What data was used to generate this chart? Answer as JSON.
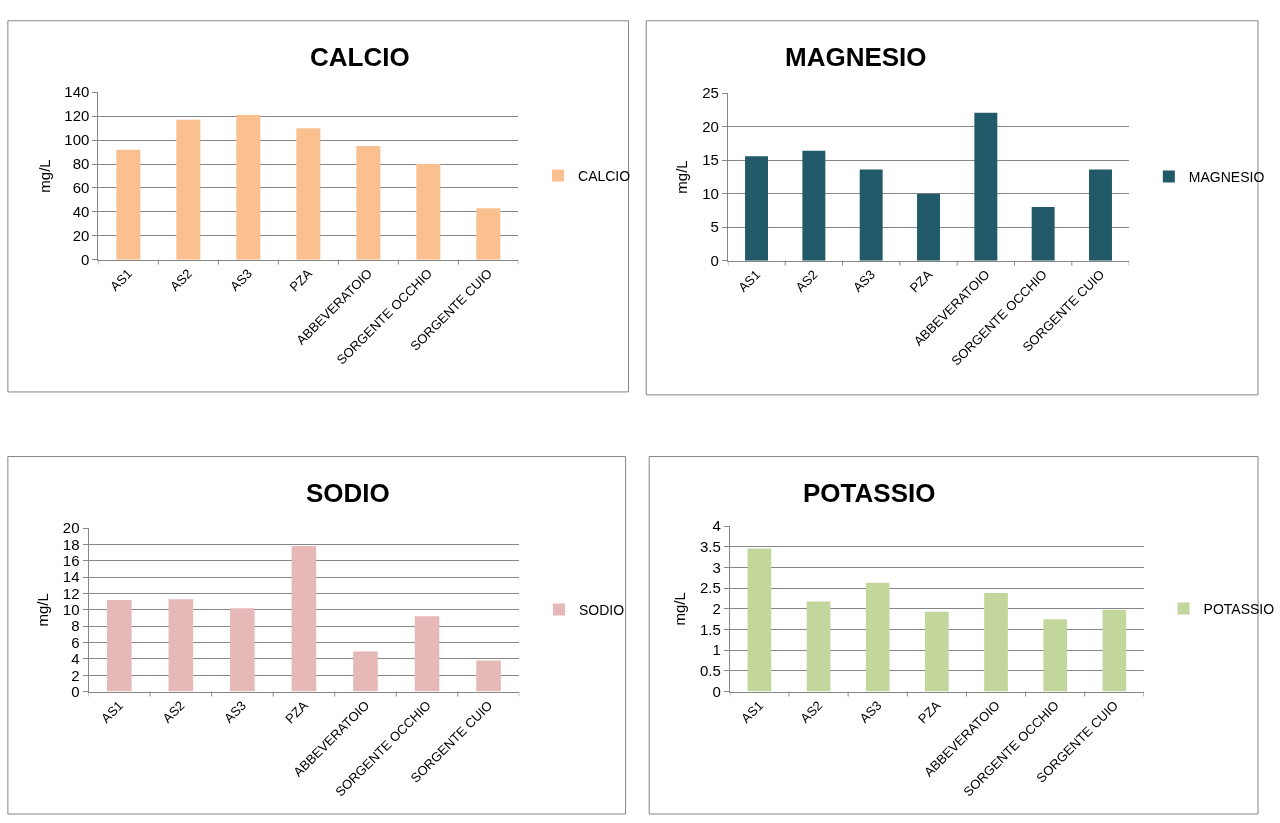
{
  "chart_data": [
    {
      "type": "bar",
      "title": "CALCIO",
      "ylabel": "mg/L",
      "categories": [
        "AS1",
        "AS2",
        "AS3",
        "PZA",
        "ABBEVERATOIO",
        "SORGENTE OCCHIO",
        "SORGENTE CUIO"
      ],
      "series": [
        {
          "name": "CALCIO",
          "color": "#fac090",
          "values": [
            92,
            117,
            121,
            110,
            95,
            80,
            43
          ]
        }
      ],
      "ylim": [
        0,
        140
      ],
      "yticks": [
        0,
        20,
        40,
        60,
        80,
        100,
        120,
        140
      ],
      "grid": "y",
      "legend": "right"
    },
    {
      "type": "bar",
      "title": "MAGNESIO",
      "ylabel": "mg/L",
      "categories": [
        "AS1",
        "AS2",
        "AS3",
        "PZA",
        "ABBEVERATOIO",
        "SORGENTE OCCHIO",
        "SORGENTE CUIO"
      ],
      "series": [
        {
          "name": "MAGNESIO",
          "color": "#215968",
          "values": [
            15.6,
            16.4,
            13.6,
            10,
            22.1,
            8,
            13.6
          ]
        }
      ],
      "ylim": [
        0,
        25
      ],
      "yticks": [
        0,
        5,
        10,
        15,
        20,
        25
      ],
      "grid": "y",
      "legend": "right"
    },
    {
      "type": "bar",
      "title": "SODIO",
      "ylabel": "mg/L",
      "categories": [
        "AS1",
        "AS2",
        "AS3",
        "PZA",
        "ABBEVERATOIO",
        "SORGENTE OCCHIO",
        "SORGENTE CUIO"
      ],
      "series": [
        {
          "name": "SODIO",
          "color": "#e6b9b8",
          "values": [
            11.2,
            11.3,
            10.2,
            17.8,
            4.9,
            9.2,
            3.8
          ]
        }
      ],
      "ylim": [
        0,
        20
      ],
      "yticks": [
        0,
        2,
        4,
        6,
        8,
        10,
        12,
        14,
        16,
        18,
        20
      ],
      "grid": "y",
      "legend": "right"
    },
    {
      "type": "bar",
      "title": "POTASSIO",
      "ylabel": "mg/L",
      "categories": [
        "AS1",
        "AS2",
        "AS3",
        "PZA",
        "ABBEVERATOIO",
        "SORGENTE OCCHIO",
        "SORGENTE CUIO"
      ],
      "series": [
        {
          "name": "POTASSIO",
          "color": "#c3d69b",
          "values": [
            3.46,
            2.18,
            2.63,
            1.93,
            2.38,
            1.75,
            1.98
          ]
        }
      ],
      "ylim": [
        0,
        4
      ],
      "yticks": [
        0,
        0.5,
        1,
        1.5,
        2,
        2.5,
        3,
        3.5,
        4
      ],
      "grid": "y",
      "legend": "right"
    }
  ]
}
